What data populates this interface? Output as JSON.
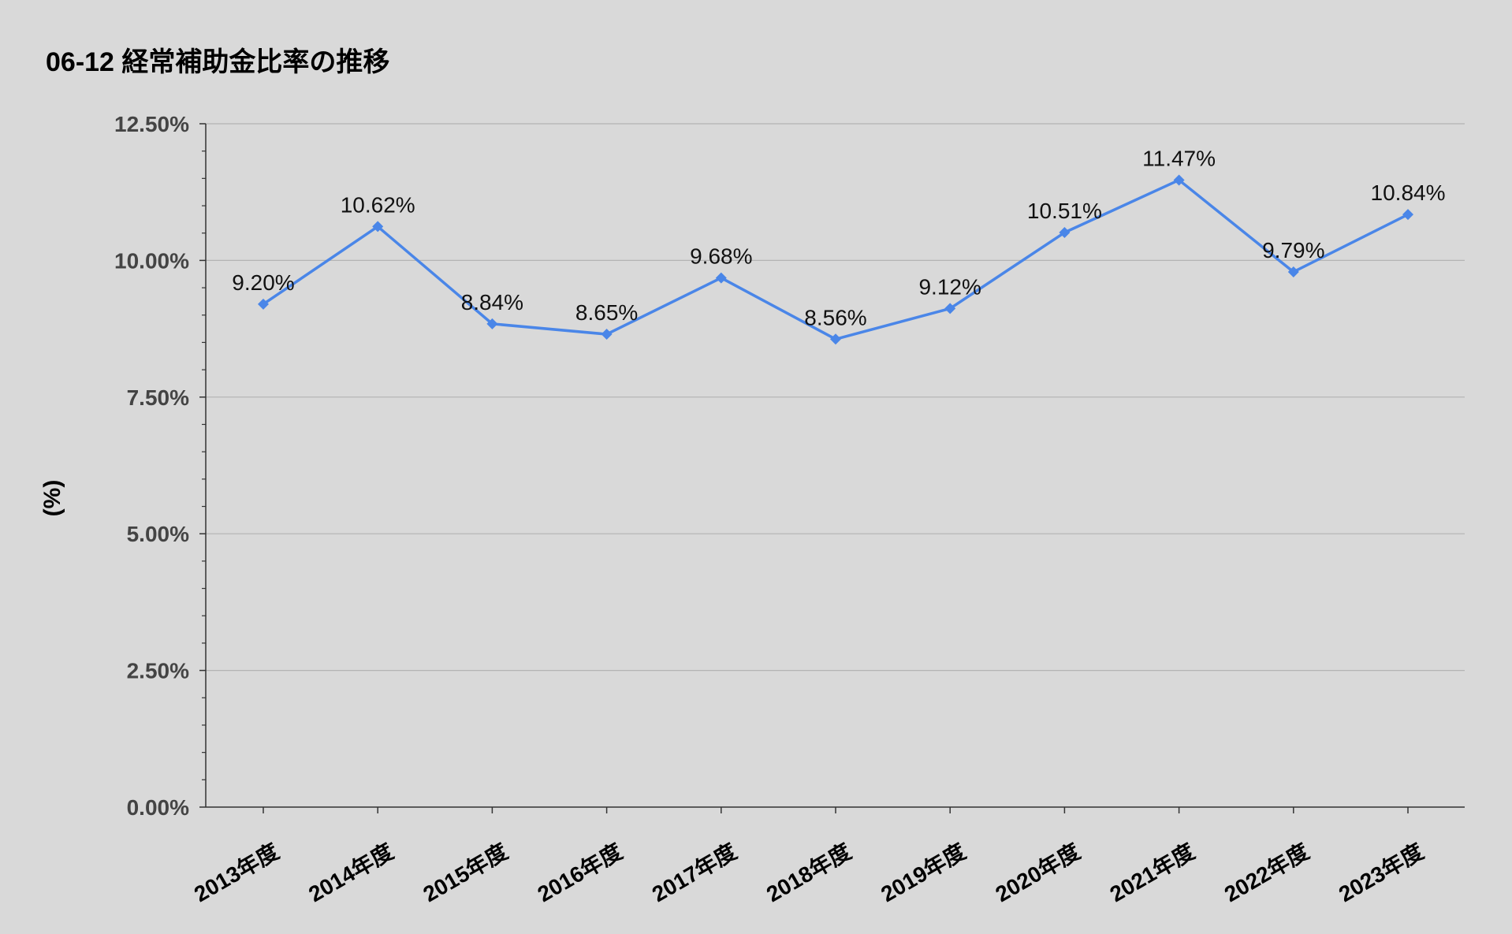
{
  "chart_data": {
    "type": "line",
    "title": "06-12 経常補助金比率の推移",
    "ylabel": "(%)",
    "xlabel": "",
    "categories": [
      "2013年度",
      "2014年度",
      "2015年度",
      "2016年度",
      "2017年度",
      "2018年度",
      "2019年度",
      "2020年度",
      "2021年度",
      "2022年度",
      "2023年度"
    ],
    "series": [
      {
        "values": [
          9.2,
          10.62,
          8.84,
          8.65,
          9.68,
          8.56,
          9.12,
          10.51,
          11.47,
          9.79,
          10.84
        ],
        "data_labels": [
          "9.20%",
          "10.62%",
          "8.84%",
          "8.65%",
          "9.68%",
          "8.56%",
          "9.12%",
          "10.51%",
          "11.47%",
          "9.79%",
          "10.84%"
        ],
        "marker": "diamond",
        "color": "#4a86e8"
      }
    ],
    "ylim": [
      0,
      12.5
    ],
    "yticks": [
      0,
      2.5,
      5,
      7.5,
      10,
      12.5
    ],
    "ytick_labels": [
      "0.00%",
      "2.50%",
      "5.00%",
      "7.50%",
      "10.00%",
      "12.50%"
    ],
    "grid": true,
    "legend": "none",
    "colors": {
      "background": "#d9d9d9",
      "gridline": "#b3b3b3",
      "axis": "#333333",
      "line": "#4a86e8"
    }
  }
}
